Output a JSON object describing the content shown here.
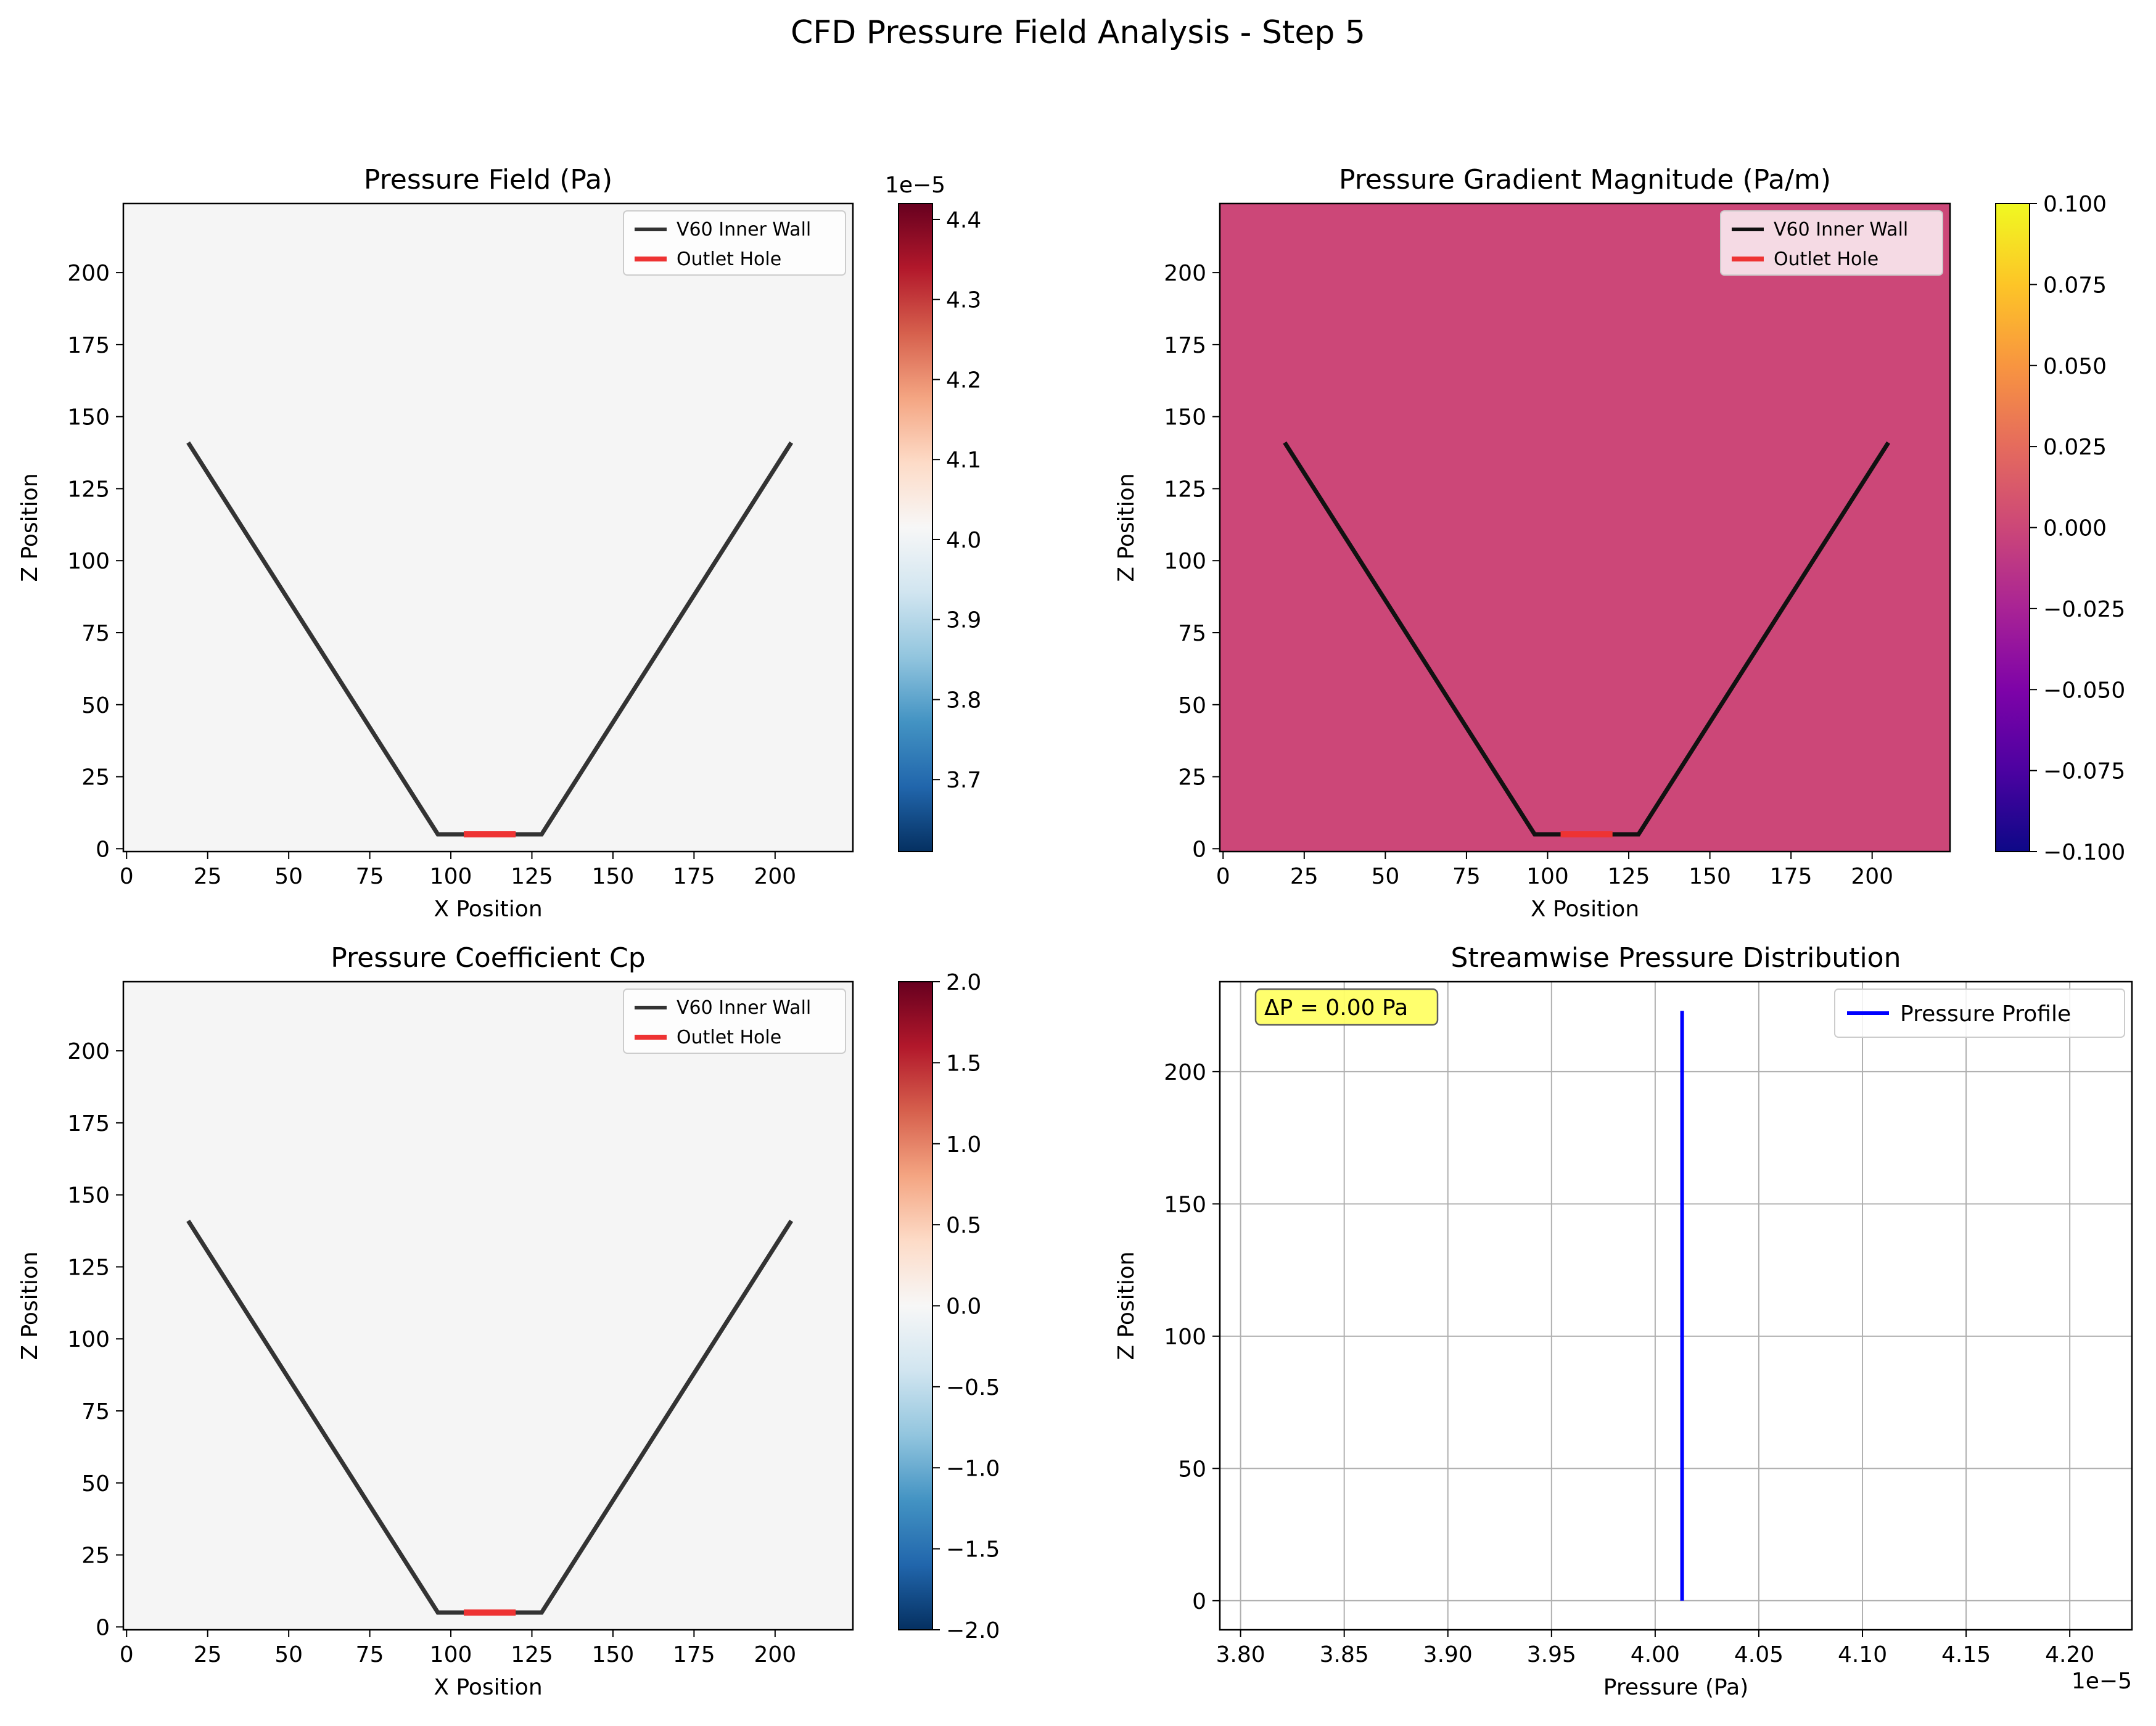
{
  "figure_title": "CFD Pressure Field Analysis - Step 5",
  "colors": {
    "wall": "#333333",
    "outlet": "#ee3333",
    "field_neutral": "#f5f5f5",
    "gradient_fill": "#cc4778",
    "profile": "#0000ff",
    "annotation_box": "#ffff66"
  },
  "chart_data": [
    {
      "type": "heatmap",
      "title": "Pressure Field (Pa)",
      "xlabel": "X Position",
      "ylabel": "Z Position",
      "xlim": [
        -1,
        224
      ],
      "ylim": [
        -1,
        224
      ],
      "xticks": [
        "0",
        "25",
        "50",
        "75",
        "100",
        "125",
        "150",
        "175",
        "200"
      ],
      "yticks": [
        "0",
        "25",
        "50",
        "75",
        "100",
        "125",
        "150",
        "175",
        "200"
      ],
      "field_value": 4.013e-05,
      "field_color": "#f5f5f5",
      "colorbar": {
        "colormap": "RdBu_r",
        "range": [
          3.61e-05,
          4.42e-05
        ],
        "ticks": [
          "3.7",
          "3.8",
          "3.9",
          "4.0",
          "4.1",
          "4.2",
          "4.3",
          "4.4"
        ],
        "offset_label": "1e−5"
      },
      "wall": {
        "name": "V60 Inner Wall",
        "x": [
          19,
          96,
          128,
          205
        ],
        "z": [
          141,
          5,
          5,
          141
        ]
      },
      "outlet": {
        "name": "Outlet Hole",
        "x": [
          104,
          120
        ],
        "z": [
          5,
          5
        ]
      },
      "legend": "top-right"
    },
    {
      "type": "heatmap",
      "title": "Pressure Gradient Magnitude (Pa/m)",
      "xlabel": "X Position",
      "ylabel": "Z Position",
      "xlim": [
        -1,
        224
      ],
      "ylim": [
        -1,
        224
      ],
      "xticks": [
        "0",
        "25",
        "50",
        "75",
        "100",
        "125",
        "150",
        "175",
        "200"
      ],
      "yticks": [
        "0",
        "25",
        "50",
        "75",
        "100",
        "125",
        "150",
        "175",
        "200"
      ],
      "field_value": 0.0,
      "field_color": "#cc4778",
      "colorbar": {
        "colormap": "plasma",
        "range": [
          -0.1,
          0.1
        ],
        "ticks": [
          "−0.100",
          "−0.075",
          "−0.050",
          "−0.025",
          "0.000",
          "0.025",
          "0.050",
          "0.075",
          "0.100"
        ],
        "offset_label": ""
      },
      "wall": {
        "name": "V60 Inner Wall",
        "x": [
          19,
          96,
          128,
          205
        ],
        "z": [
          141,
          5,
          5,
          141
        ]
      },
      "outlet": {
        "name": "Outlet Hole",
        "x": [
          104,
          120
        ],
        "z": [
          5,
          5
        ]
      },
      "legend": "top-right"
    },
    {
      "type": "heatmap",
      "title": "Pressure Coefficient Cp",
      "xlabel": "X Position",
      "ylabel": "Z Position",
      "xlim": [
        -1,
        224
      ],
      "ylim": [
        -1,
        224
      ],
      "xticks": [
        "0",
        "25",
        "50",
        "75",
        "100",
        "125",
        "150",
        "175",
        "200"
      ],
      "yticks": [
        "0",
        "25",
        "50",
        "75",
        "100",
        "125",
        "150",
        "175",
        "200"
      ],
      "field_value": 0.0,
      "field_color": "#f5f5f5",
      "colorbar": {
        "colormap": "RdBu_r",
        "range": [
          -2,
          2
        ],
        "ticks": [
          "−2.0",
          "−1.5",
          "−1.0",
          "−0.5",
          "0.0",
          "0.5",
          "1.0",
          "1.5",
          "2.0"
        ],
        "offset_label": ""
      },
      "wall": {
        "name": "V60 Inner Wall",
        "x": [
          19,
          96,
          128,
          205
        ],
        "z": [
          141,
          5,
          5,
          141
        ]
      },
      "outlet": {
        "name": "Outlet Hole",
        "x": [
          104,
          120
        ],
        "z": [
          5,
          5
        ]
      },
      "legend": "top-right"
    },
    {
      "type": "line",
      "title": "Streamwise Pressure Distribution",
      "xlabel": "Pressure (Pa)",
      "ylabel": "Z Position",
      "xlim": [
        3.79e-05,
        4.23e-05
      ],
      "ylim": [
        -11,
        234
      ],
      "x_offset_label": "1e−5",
      "xticks": [
        "3.80",
        "3.85",
        "3.90",
        "3.95",
        "4.00",
        "4.05",
        "4.10",
        "4.15",
        "4.20"
      ],
      "yticks": [
        "0",
        "50",
        "100",
        "150",
        "200"
      ],
      "grid": true,
      "series": [
        {
          "name": "Pressure Profile",
          "x": [
            4.013e-05,
            4.013e-05
          ],
          "y": [
            0,
            223
          ]
        }
      ],
      "annotation": "ΔP = 0.00 Pa",
      "legend": "top-right"
    }
  ]
}
